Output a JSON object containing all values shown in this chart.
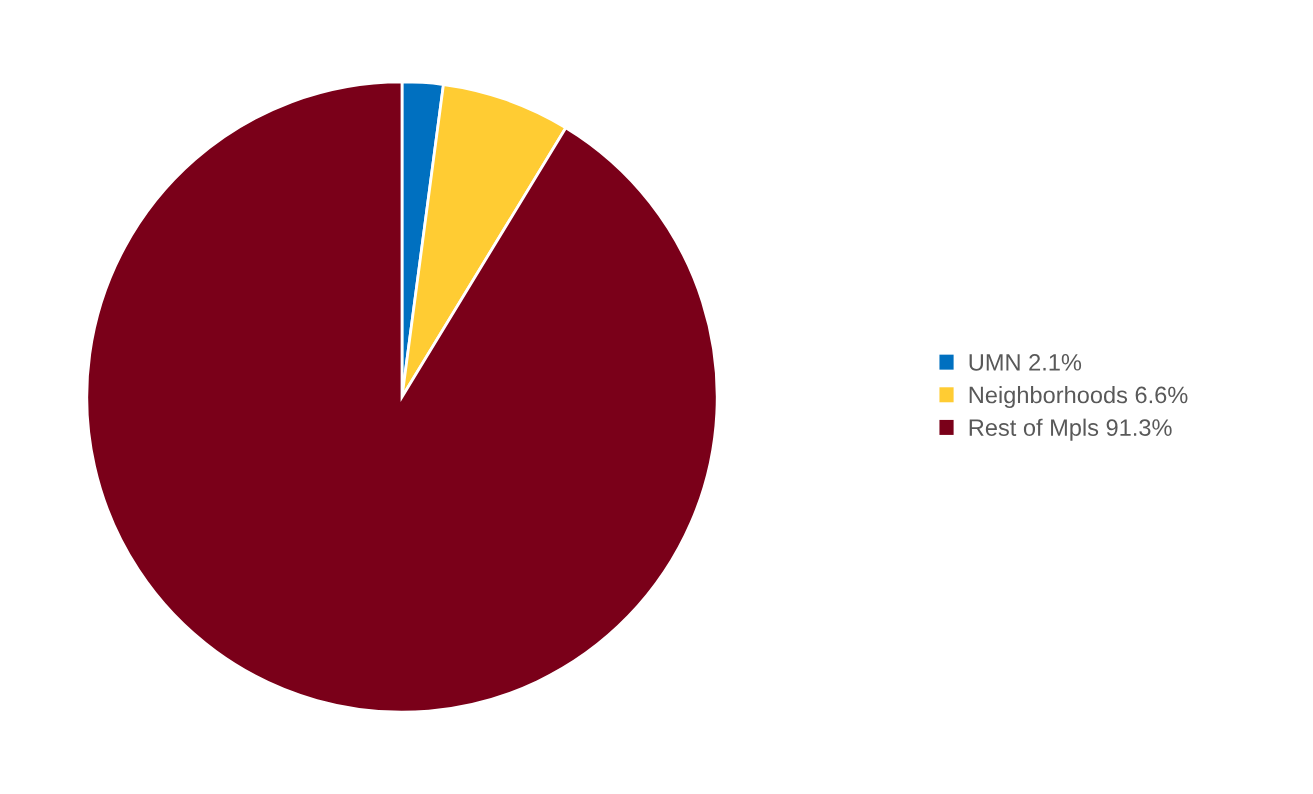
{
  "chart_data": {
    "type": "pie",
    "categories": [
      "UMN 2.1%",
      "Neighborhoods 6.6%",
      "Rest of Mpls 91.3%"
    ],
    "values": [
      2.1,
      6.6,
      91.3
    ],
    "colors": [
      "#0070c0",
      "#ffcc33",
      "#7a0019"
    ],
    "legend": "right"
  }
}
